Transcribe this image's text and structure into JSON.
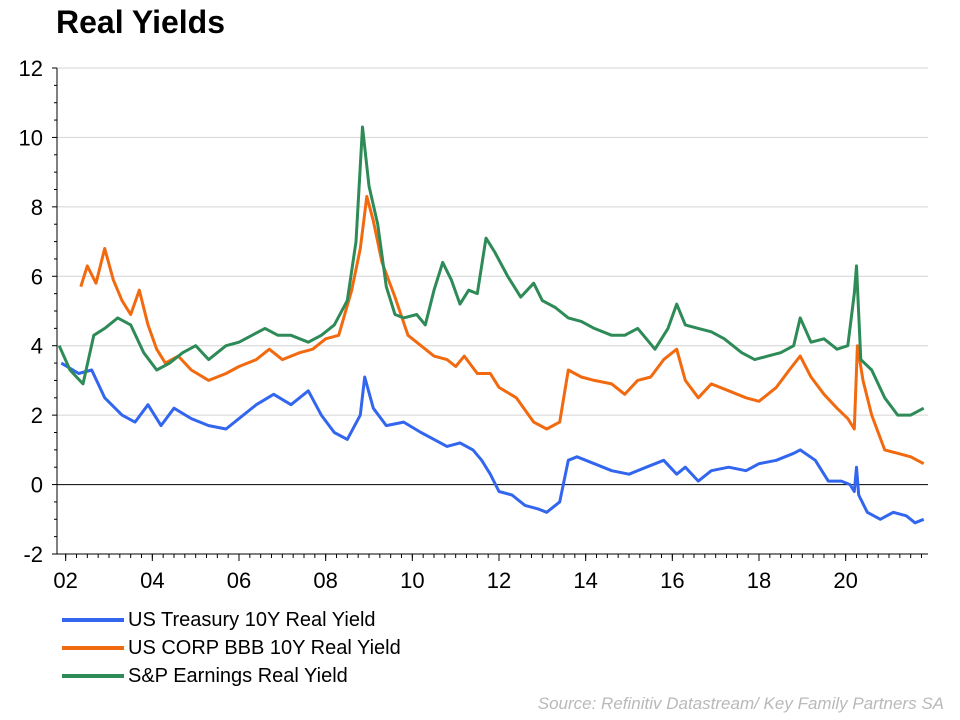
{
  "title": "Real Yields",
  "source": "Source: Refinitiv Datastream/ Key Family Partners SA",
  "colors": {
    "treasury": "#3366ee",
    "corp": "#f26a10",
    "sp": "#2e8b57"
  },
  "chart_data": {
    "type": "line",
    "title": "Real Yields",
    "xlabel": "",
    "ylabel": "",
    "xlim": [
      2001.8,
      2021.9
    ],
    "ylim": [
      -2,
      12
    ],
    "y_ticks": [
      -2,
      0,
      2,
      4,
      6,
      8,
      10,
      12
    ],
    "x_ticks": [
      {
        "value": 2002,
        "label": "02"
      },
      {
        "value": 2004,
        "label": "04"
      },
      {
        "value": 2006,
        "label": "06"
      },
      {
        "value": 2008,
        "label": "08"
      },
      {
        "value": 2010,
        "label": "10"
      },
      {
        "value": 2012,
        "label": "12"
      },
      {
        "value": 2014,
        "label": "14"
      },
      {
        "value": 2016,
        "label": "16"
      },
      {
        "value": 2018,
        "label": "18"
      },
      {
        "value": 2020,
        "label": "20"
      }
    ],
    "grid": true,
    "legend_position": "bottom-left",
    "series": [
      {
        "name": "US Treasury 10Y Real Yield",
        "color": "#3366ee",
        "points": [
          [
            2001.9,
            3.5
          ],
          [
            2002.3,
            3.2
          ],
          [
            2002.6,
            3.3
          ],
          [
            2002.9,
            2.5
          ],
          [
            2003.3,
            2.0
          ],
          [
            2003.6,
            1.8
          ],
          [
            2003.9,
            2.3
          ],
          [
            2004.2,
            1.7
          ],
          [
            2004.5,
            2.2
          ],
          [
            2004.9,
            1.9
          ],
          [
            2005.3,
            1.7
          ],
          [
            2005.7,
            1.6
          ],
          [
            2006.0,
            1.9
          ],
          [
            2006.4,
            2.3
          ],
          [
            2006.8,
            2.6
          ],
          [
            2007.2,
            2.3
          ],
          [
            2007.6,
            2.7
          ],
          [
            2007.9,
            2.0
          ],
          [
            2008.2,
            1.5
          ],
          [
            2008.5,
            1.3
          ],
          [
            2008.8,
            2.0
          ],
          [
            2008.9,
            3.1
          ],
          [
            2009.1,
            2.2
          ],
          [
            2009.4,
            1.7
          ],
          [
            2009.8,
            1.8
          ],
          [
            2010.2,
            1.5
          ],
          [
            2010.5,
            1.3
          ],
          [
            2010.8,
            1.1
          ],
          [
            2011.1,
            1.2
          ],
          [
            2011.4,
            1.0
          ],
          [
            2011.6,
            0.7
          ],
          [
            2011.8,
            0.3
          ],
          [
            2012.0,
            -0.2
          ],
          [
            2012.3,
            -0.3
          ],
          [
            2012.6,
            -0.6
          ],
          [
            2012.9,
            -0.7
          ],
          [
            2013.1,
            -0.8
          ],
          [
            2013.4,
            -0.5
          ],
          [
            2013.6,
            0.7
          ],
          [
            2013.8,
            0.8
          ],
          [
            2014.2,
            0.6
          ],
          [
            2014.6,
            0.4
          ],
          [
            2015.0,
            0.3
          ],
          [
            2015.4,
            0.5
          ],
          [
            2015.8,
            0.7
          ],
          [
            2016.1,
            0.3
          ],
          [
            2016.3,
            0.5
          ],
          [
            2016.6,
            0.1
          ],
          [
            2016.9,
            0.4
          ],
          [
            2017.3,
            0.5
          ],
          [
            2017.7,
            0.4
          ],
          [
            2018.0,
            0.6
          ],
          [
            2018.4,
            0.7
          ],
          [
            2018.8,
            0.9
          ],
          [
            2018.95,
            1.0
          ],
          [
            2019.3,
            0.7
          ],
          [
            2019.6,
            0.1
          ],
          [
            2019.9,
            0.1
          ],
          [
            2020.1,
            0.0
          ],
          [
            2020.2,
            -0.2
          ],
          [
            2020.25,
            0.5
          ],
          [
            2020.3,
            -0.3
          ],
          [
            2020.5,
            -0.8
          ],
          [
            2020.8,
            -1.0
          ],
          [
            2021.1,
            -0.8
          ],
          [
            2021.4,
            -0.9
          ],
          [
            2021.6,
            -1.1
          ],
          [
            2021.8,
            -1.0
          ]
        ]
      },
      {
        "name": "US CORP BBB 10Y Real Yield",
        "color": "#f26a10",
        "points": [
          [
            2002.35,
            5.7
          ],
          [
            2002.5,
            6.3
          ],
          [
            2002.7,
            5.8
          ],
          [
            2002.9,
            6.8
          ],
          [
            2003.1,
            5.9
          ],
          [
            2003.3,
            5.3
          ],
          [
            2003.5,
            4.9
          ],
          [
            2003.7,
            5.6
          ],
          [
            2003.9,
            4.6
          ],
          [
            2004.1,
            3.9
          ],
          [
            2004.3,
            3.5
          ],
          [
            2004.6,
            3.7
          ],
          [
            2004.9,
            3.3
          ],
          [
            2005.3,
            3.0
          ],
          [
            2005.7,
            3.2
          ],
          [
            2006.0,
            3.4
          ],
          [
            2006.4,
            3.6
          ],
          [
            2006.7,
            3.9
          ],
          [
            2007.0,
            3.6
          ],
          [
            2007.4,
            3.8
          ],
          [
            2007.7,
            3.9
          ],
          [
            2008.0,
            4.2
          ],
          [
            2008.3,
            4.3
          ],
          [
            2008.6,
            5.6
          ],
          [
            2008.8,
            6.8
          ],
          [
            2008.95,
            8.3
          ],
          [
            2009.1,
            7.6
          ],
          [
            2009.3,
            6.4
          ],
          [
            2009.6,
            5.4
          ],
          [
            2009.9,
            4.3
          ],
          [
            2010.2,
            4.0
          ],
          [
            2010.5,
            3.7
          ],
          [
            2010.8,
            3.6
          ],
          [
            2011.0,
            3.4
          ],
          [
            2011.2,
            3.7
          ],
          [
            2011.5,
            3.2
          ],
          [
            2011.8,
            3.2
          ],
          [
            2012.0,
            2.8
          ],
          [
            2012.4,
            2.5
          ],
          [
            2012.8,
            1.8
          ],
          [
            2013.1,
            1.6
          ],
          [
            2013.4,
            1.8
          ],
          [
            2013.6,
            3.3
          ],
          [
            2013.9,
            3.1
          ],
          [
            2014.2,
            3.0
          ],
          [
            2014.6,
            2.9
          ],
          [
            2014.9,
            2.6
          ],
          [
            2015.2,
            3.0
          ],
          [
            2015.5,
            3.1
          ],
          [
            2015.8,
            3.6
          ],
          [
            2016.1,
            3.9
          ],
          [
            2016.3,
            3.0
          ],
          [
            2016.6,
            2.5
          ],
          [
            2016.9,
            2.9
          ],
          [
            2017.3,
            2.7
          ],
          [
            2017.7,
            2.5
          ],
          [
            2018.0,
            2.4
          ],
          [
            2018.4,
            2.8
          ],
          [
            2018.7,
            3.3
          ],
          [
            2018.95,
            3.7
          ],
          [
            2019.2,
            3.1
          ],
          [
            2019.5,
            2.6
          ],
          [
            2019.8,
            2.2
          ],
          [
            2020.05,
            1.9
          ],
          [
            2020.2,
            1.6
          ],
          [
            2020.27,
            4.0
          ],
          [
            2020.4,
            3.0
          ],
          [
            2020.6,
            2.0
          ],
          [
            2020.9,
            1.0
          ],
          [
            2021.2,
            0.9
          ],
          [
            2021.5,
            0.8
          ],
          [
            2021.8,
            0.6
          ]
        ]
      },
      {
        "name": "S&P Earnings Real Yield",
        "color": "#2e8b57",
        "points": [
          [
            2001.85,
            4.0
          ],
          [
            2002.1,
            3.3
          ],
          [
            2002.4,
            2.9
          ],
          [
            2002.65,
            4.3
          ],
          [
            2002.9,
            4.5
          ],
          [
            2003.2,
            4.8
          ],
          [
            2003.5,
            4.6
          ],
          [
            2003.8,
            3.8
          ],
          [
            2004.1,
            3.3
          ],
          [
            2004.4,
            3.5
          ],
          [
            2004.7,
            3.8
          ],
          [
            2005.0,
            4.0
          ],
          [
            2005.3,
            3.6
          ],
          [
            2005.7,
            4.0
          ],
          [
            2006.0,
            4.1
          ],
          [
            2006.3,
            4.3
          ],
          [
            2006.6,
            4.5
          ],
          [
            2006.9,
            4.3
          ],
          [
            2007.2,
            4.3
          ],
          [
            2007.6,
            4.1
          ],
          [
            2007.9,
            4.3
          ],
          [
            2008.2,
            4.6
          ],
          [
            2008.5,
            5.3
          ],
          [
            2008.7,
            7.0
          ],
          [
            2008.85,
            10.3
          ],
          [
            2009.0,
            8.6
          ],
          [
            2009.2,
            7.5
          ],
          [
            2009.4,
            5.7
          ],
          [
            2009.6,
            4.9
          ],
          [
            2009.8,
            4.8
          ],
          [
            2010.1,
            4.9
          ],
          [
            2010.3,
            4.6
          ],
          [
            2010.5,
            5.6
          ],
          [
            2010.7,
            6.4
          ],
          [
            2010.9,
            5.9
          ],
          [
            2011.1,
            5.2
          ],
          [
            2011.3,
            5.6
          ],
          [
            2011.5,
            5.5
          ],
          [
            2011.7,
            7.1
          ],
          [
            2011.9,
            6.7
          ],
          [
            2012.2,
            6.0
          ],
          [
            2012.5,
            5.4
          ],
          [
            2012.8,
            5.8
          ],
          [
            2013.0,
            5.3
          ],
          [
            2013.3,
            5.1
          ],
          [
            2013.6,
            4.8
          ],
          [
            2013.9,
            4.7
          ],
          [
            2014.2,
            4.5
          ],
          [
            2014.6,
            4.3
          ],
          [
            2014.9,
            4.3
          ],
          [
            2015.2,
            4.5
          ],
          [
            2015.6,
            3.9
          ],
          [
            2015.9,
            4.5
          ],
          [
            2016.1,
            5.2
          ],
          [
            2016.3,
            4.6
          ],
          [
            2016.6,
            4.5
          ],
          [
            2016.9,
            4.4
          ],
          [
            2017.2,
            4.2
          ],
          [
            2017.6,
            3.8
          ],
          [
            2017.9,
            3.6
          ],
          [
            2018.2,
            3.7
          ],
          [
            2018.5,
            3.8
          ],
          [
            2018.8,
            4.0
          ],
          [
            2018.95,
            4.8
          ],
          [
            2019.2,
            4.1
          ],
          [
            2019.5,
            4.2
          ],
          [
            2019.8,
            3.9
          ],
          [
            2020.05,
            4.0
          ],
          [
            2020.2,
            5.5
          ],
          [
            2020.25,
            6.3
          ],
          [
            2020.35,
            3.6
          ],
          [
            2020.6,
            3.3
          ],
          [
            2020.9,
            2.5
          ],
          [
            2021.2,
            2.0
          ],
          [
            2021.5,
            2.0
          ],
          [
            2021.8,
            2.2
          ]
        ]
      }
    ]
  }
}
